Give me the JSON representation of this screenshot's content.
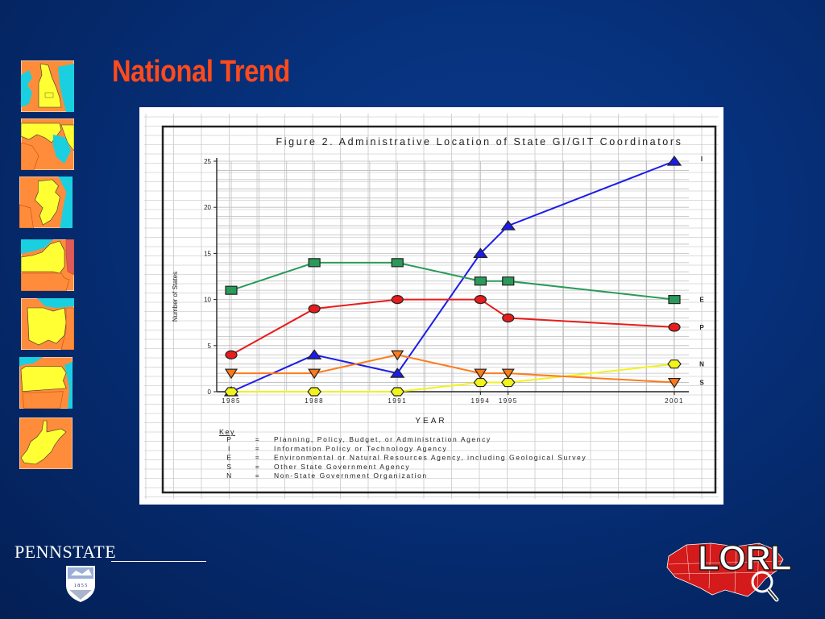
{
  "slide": {
    "title": "National Trend"
  },
  "thumbnails": [
    {
      "name": "delaware-map-icon"
    },
    {
      "name": "maryland-map-icon"
    },
    {
      "name": "new-jersey-map-icon"
    },
    {
      "name": "new-york-map-icon"
    },
    {
      "name": "ohio-map-icon"
    },
    {
      "name": "pennsylvania-map-icon"
    },
    {
      "name": "west-virginia-map-icon"
    }
  ],
  "logos": {
    "pennstate_text": "PENNSTATE",
    "pennstate_year": "1 8 5 5",
    "lorl_text": "LORL"
  },
  "colors": {
    "title": "#ff4a1c",
    "series_P": "#e81c1c",
    "series_I": "#1c1ce8",
    "series_E": "#2a9a5a",
    "series_S": "#ff7a1c",
    "series_N": "#f2f21c"
  },
  "chart_data": {
    "type": "line",
    "title": "Figure 2. Administrative Location of State GI/GIT Coordinators",
    "xlabel": "YEAR",
    "ylabel": "Number of States",
    "x_ticks": [
      "1985",
      "1988",
      "1991",
      "1994",
      "1995",
      "2001"
    ],
    "y_ticks": [
      "0",
      "5",
      "10",
      "15",
      "20",
      "25"
    ],
    "ylim": [
      0,
      25
    ],
    "xlim": [
      1985,
      2001
    ],
    "grid": true,
    "series": [
      {
        "name": "I",
        "marker": "triangle-up",
        "color": "#1c1ce8",
        "x": [
          1985,
          1988,
          1991,
          1994,
          1995,
          2001
        ],
        "y": [
          0,
          4,
          2,
          15,
          18,
          25
        ]
      },
      {
        "name": "E",
        "marker": "square",
        "color": "#2a9a5a",
        "x": [
          1985,
          1988,
          1991,
          1994,
          1995,
          2001
        ],
        "y": [
          11,
          14,
          14,
          12,
          12,
          10
        ]
      },
      {
        "name": "P",
        "marker": "circle",
        "color": "#e81c1c",
        "x": [
          1985,
          1988,
          1991,
          1994,
          1995,
          2001
        ],
        "y": [
          4,
          9,
          10,
          10,
          8,
          7
        ]
      },
      {
        "name": "N",
        "marker": "hexagon",
        "color": "#f2f21c",
        "x": [
          1985,
          1988,
          1991,
          1994,
          1995,
          2001
        ],
        "y": [
          0,
          0,
          0,
          1,
          1,
          3
        ]
      },
      {
        "name": "S",
        "marker": "triangle-down",
        "color": "#ff7a1c",
        "x": [
          1985,
          1988,
          1991,
          1994,
          1995,
          2001
        ],
        "y": [
          2,
          2,
          4,
          2,
          2,
          1
        ]
      }
    ],
    "key_title": "Key",
    "key": [
      {
        "code": "P",
        "eq": "=",
        "desc": "Planning, Policy, Budget, or Administration Agency"
      },
      {
        "code": "I",
        "eq": "=",
        "desc": "Information Policy or Technology Agency"
      },
      {
        "code": "E",
        "eq": "=",
        "desc": "Environmental or Natural Resources Agency, including Geological Survey"
      },
      {
        "code": "S",
        "eq": "=",
        "desc": "Other State Government Agency"
      },
      {
        "code": "N",
        "eq": "=",
        "desc": "Non-State Government Organization"
      }
    ]
  }
}
